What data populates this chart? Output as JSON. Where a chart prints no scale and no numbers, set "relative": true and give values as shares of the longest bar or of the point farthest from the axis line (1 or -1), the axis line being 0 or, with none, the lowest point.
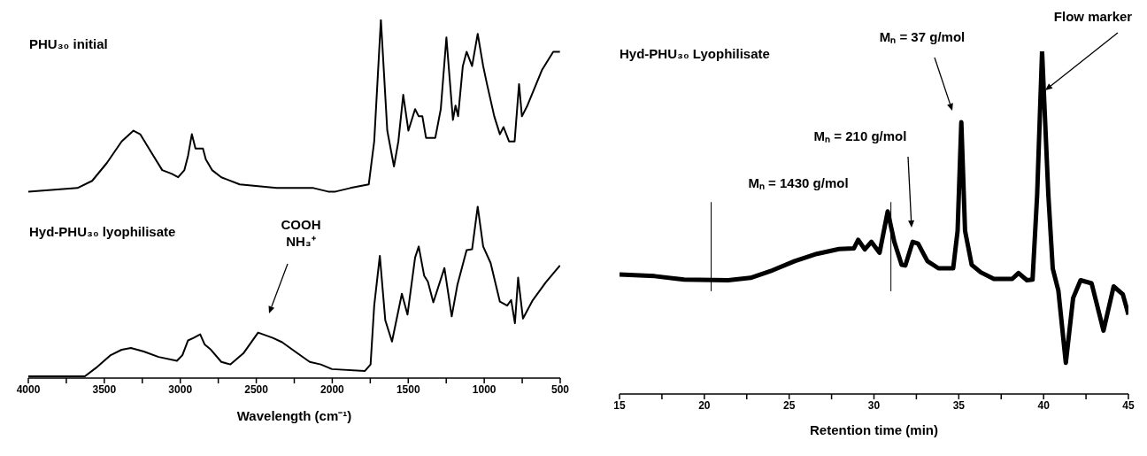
{
  "chart_data": [
    {
      "type": "line",
      "relative": true,
      "xlabel": "Wavelength (cm⁻¹)",
      "xlim": [
        4000,
        500
      ],
      "xticks": [
        4000,
        {
          "value": 3750,
          "label": null
        },
        3500,
        {
          "value": 3250,
          "label": null
        },
        3000,
        {
          "value": 2750,
          "label": null
        },
        2500,
        {
          "value": 2250,
          "label": null
        },
        2000,
        {
          "value": 1750,
          "label": null
        },
        1500,
        {
          "value": 1250,
          "label": null
        },
        1000,
        {
          "value": 750,
          "label": null
        },
        500
      ],
      "series": [
        {
          "color": "#000000",
          "x": [
            4000,
            3677,
            3580,
            3483,
            3386,
            3308,
            3264,
            3192,
            3119,
            3058,
            3014,
            2973,
            2949,
            2924,
            2900,
            2864,
            2851,
            2832,
            2791,
            2730,
            2609,
            2366,
            2160,
            2124,
            2027,
            1979,
            1881,
            1760,
            1724,
            1680,
            1638,
            1594,
            1565,
            1533,
            1499,
            1455,
            1431,
            1407,
            1383,
            1322,
            1286,
            1249,
            1206,
            1189,
            1172,
            1141,
            1116,
            1080,
            1043,
            1007,
            982,
            934,
            897,
            873,
            837,
            800,
            771,
            752,
            716,
            619,
            546,
            502
          ],
          "values": [
            0.52,
            0.53,
            0.55,
            0.6,
            0.66,
            0.69,
            0.68,
            0.63,
            0.58,
            0.57,
            0.56,
            0.58,
            0.62,
            0.68,
            0.64,
            0.64,
            0.64,
            0.61,
            0.58,
            0.56,
            0.54,
            0.53,
            0.53,
            0.53,
            0.52,
            0.52,
            0.53,
            0.54,
            0.66,
            1.0,
            0.69,
            0.59,
            0.66,
            0.79,
            0.69,
            0.75,
            0.73,
            0.73,
            0.67,
            0.67,
            0.75,
            0.95,
            0.72,
            0.76,
            0.73,
            0.87,
            0.91,
            0.87,
            0.96,
            0.87,
            0.82,
            0.73,
            0.68,
            0.7,
            0.66,
            0.66,
            0.82,
            0.73,
            0.76,
            0.86,
            0.91,
            0.91
          ]
        },
        {
          "color": "#000000",
          "x": [
            4000,
            3628,
            3556,
            3458,
            3386,
            3325,
            3240,
            3143,
            3022,
            2986,
            2949,
            2913,
            2869,
            2840,
            2803,
            2730,
            2670,
            2585,
            2488,
            2391,
            2330,
            2245,
            2148,
            2075,
            2002,
            1785,
            1748,
            1724,
            1687,
            1651,
            1607,
            1542,
            1505,
            1455,
            1431,
            1395,
            1371,
            1335,
            1262,
            1214,
            1177,
            1116,
            1080,
            1043,
            1007,
            958,
            897,
            849,
            823,
            798,
            777,
            745,
            684,
            595,
            502
          ],
          "values": [
            0.005,
            0.005,
            0.028,
            0.064,
            0.079,
            0.084,
            0.074,
            0.059,
            0.048,
            0.064,
            0.105,
            0.112,
            0.122,
            0.094,
            0.081,
            0.045,
            0.038,
            0.069,
            0.127,
            0.112,
            0.1,
            0.074,
            0.045,
            0.038,
            0.025,
            0.02,
            0.038,
            0.202,
            0.341,
            0.161,
            0.102,
            0.235,
            0.177,
            0.336,
            0.367,
            0.285,
            0.269,
            0.211,
            0.307,
            0.172,
            0.259,
            0.357,
            0.359,
            0.478,
            0.367,
            0.321,
            0.213,
            0.202,
            0.218,
            0.153,
            0.28,
            0.166,
            0.215,
            0.267,
            0.314
          ]
        }
      ],
      "annotations": [
        "PHU₃₀ initial",
        "Hyd-PHU₃₀ lyophilisate",
        "COOH\nNH₃⁺"
      ]
    },
    {
      "type": "line",
      "relative": true,
      "title": "Hyd-PHU₃₀ Lyophilisate",
      "xlabel": "Retention time (min)",
      "xlim": [
        15,
        45
      ],
      "xticks": [
        15,
        {
          "value": 17.5,
          "label": null
        },
        20,
        {
          "value": 22.5,
          "label": null
        },
        25,
        {
          "value": 27.5,
          "label": null
        },
        30,
        {
          "value": 32.5,
          "label": null
        },
        35,
        {
          "value": 37.5,
          "label": null
        },
        40,
        {
          "value": 42.5,
          "label": null
        },
        45
      ],
      "series": [
        {
          "color": "#000000",
          "x": [
            15,
            17.07,
            18.81,
            21.4,
            22.72,
            24.02,
            25.33,
            26.63,
            27.94,
            28.81,
            29.07,
            29.46,
            29.85,
            30.33,
            30.81,
            31.2,
            31.63,
            31.85,
            32.28,
            32.6,
            33.15,
            33.8,
            34.67,
            34.93,
            35.15,
            35.37,
            35.76,
            36.3,
            37.07,
            38.15,
            38.52,
            39.02,
            39.35,
            39.62,
            39.91,
            40.28,
            40.54,
            40.87,
            41.31,
            41.74,
            42.18,
            42.83,
            43.53,
            44.13,
            44.67,
            45
          ],
          "values": [
            0.349,
            0.344,
            0.334,
            0.332,
            0.339,
            0.361,
            0.388,
            0.409,
            0.423,
            0.425,
            0.45,
            0.422,
            0.444,
            0.412,
            0.533,
            0.444,
            0.377,
            0.375,
            0.444,
            0.439,
            0.388,
            0.367,
            0.367,
            0.476,
            0.793,
            0.476,
            0.377,
            0.355,
            0.336,
            0.336,
            0.353,
            0.332,
            0.334,
            0.581,
            1.0,
            0.581,
            0.366,
            0.302,
            0.091,
            0.28,
            0.332,
            0.323,
            0.185,
            0.314,
            0.291,
            0.232
          ]
        }
      ],
      "ref_lines": [
        {
          "axis": "x",
          "value": 20.4,
          "color": "#000000"
        },
        {
          "axis": "x",
          "value": 31.0,
          "color": "#000000"
        }
      ],
      "annotations": [
        "Mₙ = 37 g/mol",
        "Mₙ = 210 g/mol",
        "Mₙ = 1430 g/mol",
        "Flow marker"
      ]
    }
  ]
}
